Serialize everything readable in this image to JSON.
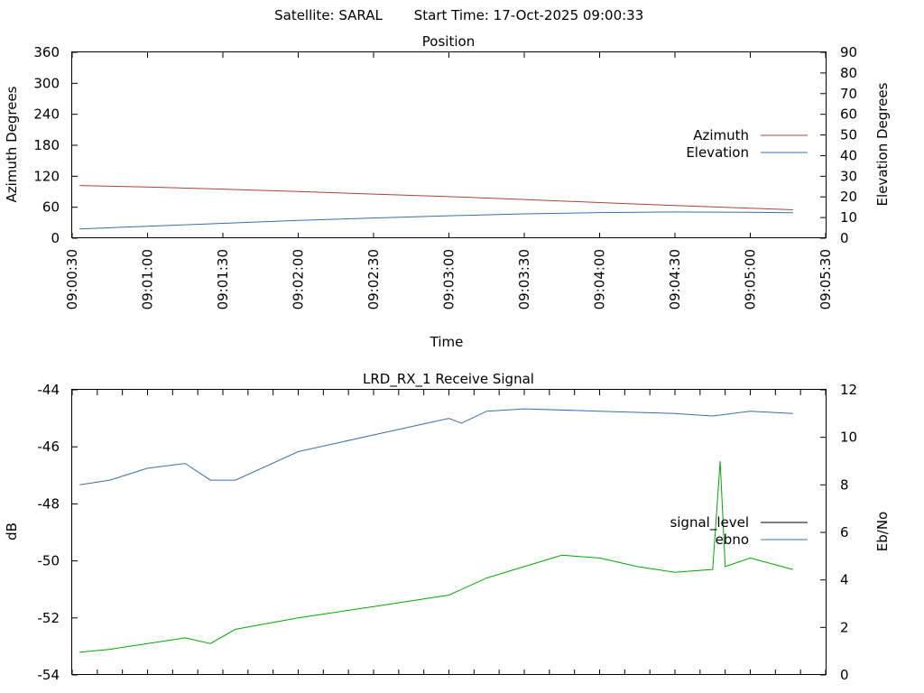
{
  "header": {
    "satellite_text": "Satellite: SARAL",
    "start_time_text": "Start Time: 17-Oct-2025 09:00:33"
  },
  "chart_data": [
    {
      "type": "line",
      "title": "Position",
      "xlabel": "Time",
      "ylabel": "Azimuth Degrees",
      "y2label": "Elevation Degrees",
      "x_ticks": [
        "09:00:30",
        "09:01:00",
        "09:01:30",
        "09:02:00",
        "09:02:30",
        "09:03:00",
        "09:03:30",
        "09:04:00",
        "09:04:30",
        "09:05:00",
        "09:05:30"
      ],
      "xlim": [
        "09:00:30",
        "09:05:30"
      ],
      "ylim": [
        0,
        360
      ],
      "y_ticks": [
        0,
        60,
        120,
        180,
        240,
        300,
        360
      ],
      "y2lim": [
        0,
        90
      ],
      "y2_ticks": [
        0,
        10,
        20,
        30,
        40,
        50,
        60,
        70,
        80,
        90
      ],
      "legend_position": "right",
      "series": [
        {
          "name": "Azimuth",
          "axis": "y",
          "color": "#a94442",
          "points": [
            [
              "09:00:33",
              102
            ],
            [
              "09:01:00",
              99
            ],
            [
              "09:01:30",
              95
            ],
            [
              "09:02:00",
              90.5
            ],
            [
              "09:02:30",
              85.5
            ],
            [
              "09:03:00",
              80.5
            ],
            [
              "09:03:30",
              75
            ],
            [
              "09:04:00",
              69
            ],
            [
              "09:04:30",
              63.5
            ],
            [
              "09:05:00",
              58
            ],
            [
              "09:05:17",
              55
            ]
          ]
        },
        {
          "name": "Elevation",
          "axis": "y2",
          "color": "#3a6fa6",
          "points": [
            [
              "09:00:33",
              4.5
            ],
            [
              "09:01:00",
              5.8
            ],
            [
              "09:01:30",
              7.2
            ],
            [
              "09:02:00",
              8.6
            ],
            [
              "09:02:30",
              9.8
            ],
            [
              "09:03:00",
              10.9
            ],
            [
              "09:03:30",
              11.8
            ],
            [
              "09:04:00",
              12.4
            ],
            [
              "09:04:30",
              12.7
            ],
            [
              "09:05:00",
              12.6
            ],
            [
              "09:05:17",
              12.3
            ]
          ]
        }
      ]
    },
    {
      "type": "line",
      "title": "LRD_RX_1 Receive Signal",
      "xlabel": "",
      "ylabel": "dB",
      "y2label": "Eb/No",
      "xlim": [
        "09:00:30",
        "09:05:30"
      ],
      "ylim": [
        -54,
        -44
      ],
      "y_ticks": [
        -54,
        -52,
        -50,
        -48,
        -46,
        -44
      ],
      "y2lim": [
        0,
        12
      ],
      "y2_ticks": [
        0,
        2,
        4,
        6,
        8,
        10,
        12
      ],
      "legend_position": "right",
      "series": [
        {
          "name": "signal_level",
          "axis": "y",
          "color": "#00aa00",
          "points": [
            [
              "09:00:33",
              -53.2
            ],
            [
              "09:00:45",
              -53.1
            ],
            [
              "09:01:00",
              -52.9
            ],
            [
              "09:01:15",
              -52.7
            ],
            [
              "09:01:25",
              -52.9
            ],
            [
              "09:01:35",
              -52.4
            ],
            [
              "09:02:00",
              -52.0
            ],
            [
              "09:02:30",
              -51.6
            ],
            [
              "09:03:00",
              -51.2
            ],
            [
              "09:03:15",
              -50.6
            ],
            [
              "09:03:30",
              -50.2
            ],
            [
              "09:03:45",
              -49.8
            ],
            [
              "09:04:00",
              -49.9
            ],
            [
              "09:04:15",
              -50.2
            ],
            [
              "09:04:30",
              -50.4
            ],
            [
              "09:04:45",
              -50.3
            ],
            [
              "09:04:48",
              -46.5
            ],
            [
              "09:04:50",
              -50.2
            ],
            [
              "09:05:00",
              -49.9
            ],
            [
              "09:05:17",
              -50.3
            ]
          ]
        },
        {
          "name": "ebno",
          "axis": "y2",
          "color": "#3a6fa6",
          "points": [
            [
              "09:00:33",
              8.0
            ],
            [
              "09:00:45",
              8.2
            ],
            [
              "09:01:00",
              8.7
            ],
            [
              "09:01:15",
              8.9
            ],
            [
              "09:01:25",
              8.2
            ],
            [
              "09:01:35",
              8.2
            ],
            [
              "09:02:00",
              9.4
            ],
            [
              "09:02:30",
              10.1
            ],
            [
              "09:03:00",
              10.8
            ],
            [
              "09:03:05",
              10.6
            ],
            [
              "09:03:15",
              11.1
            ],
            [
              "09:03:30",
              11.2
            ],
            [
              "09:04:00",
              11.1
            ],
            [
              "09:04:30",
              11.0
            ],
            [
              "09:04:45",
              10.9
            ],
            [
              "09:05:00",
              11.1
            ],
            [
              "09:05:17",
              11.0
            ]
          ]
        }
      ]
    }
  ]
}
